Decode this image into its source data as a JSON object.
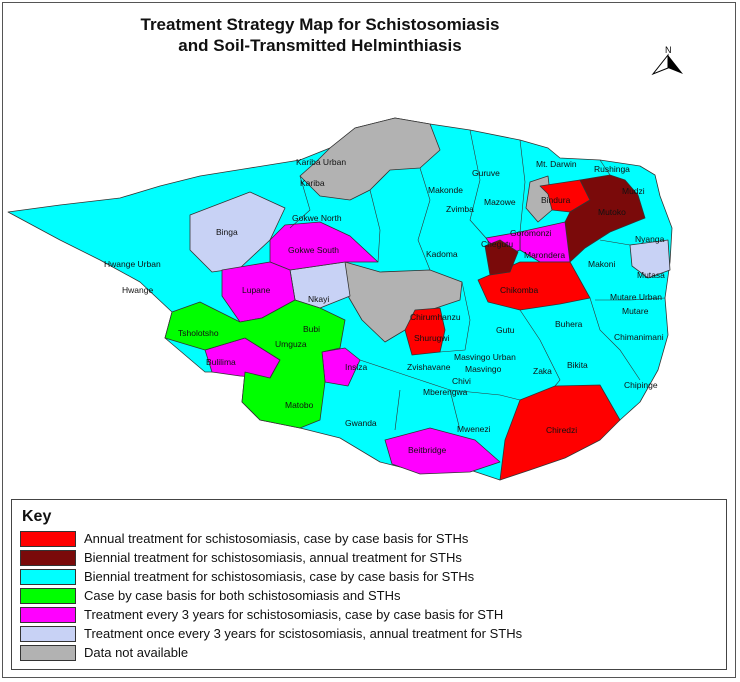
{
  "title_line1": "Treatment Strategy Map for Schistosomiasis",
  "title_line2": "and Soil-Transmitted Helminthiasis",
  "north_label": "N",
  "colors": {
    "annual_schisto": "#ff0000",
    "biennial_schisto_annual_sth": "#7a0a0a",
    "biennial_schisto": "#00ffff",
    "case_by_case_both": "#00ff00",
    "every3_schisto": "#ff00ff",
    "once3_schisto_annual_sth": "#c8d2f5",
    "no_data": "#b2b2b2"
  },
  "districts": {
    "kariba_urban": "Kariba Urban",
    "mt_darwin": "Mt. Darwin",
    "rushinga": "Rushinga",
    "kariba": "Kariba",
    "guruve": "Guruve",
    "makonde": "Makonde",
    "mudzi": "Mudzi",
    "mazowe": "Mazowe",
    "bindura": "Bindura",
    "mutoko": "Mutoko",
    "zvimba": "Zvimba",
    "binga": "Binga",
    "gokwe_north": "Gokwe North",
    "goromonzi": "Goromonzi",
    "gokwe_south": "Gokwe South",
    "chegutu": "Chegutu",
    "marondera": "Marondera",
    "nyanga": "Nyanga",
    "hwange_urban": "Hwange Urban",
    "kadoma": "Kadoma",
    "makoni": "Makoni",
    "mutasa": "Mutasa",
    "hwange": "Hwange",
    "lupane": "Lupane",
    "chikomba": "Chikomba",
    "nkayi": "Nkayi",
    "mutare_urban": "Mutare Urban",
    "mutare": "Mutare",
    "shurugwi": "Shurugwi",
    "gutu": "Gutu",
    "buhera": "Buhera",
    "tsholotsho": "Tsholotsho",
    "bubi": "Bubi",
    "umguza": "Umguza",
    "chimanimani": "Chimanimani",
    "bulilima": "Bulilima",
    "insiza": "Insiza",
    "zvishavane": "Zvishavane",
    "masvingo_urban": "Masvingo Urban",
    "masvingo": "Masvingo",
    "zaka": "Zaka",
    "bikita": "Bikita",
    "chivi": "Chivi",
    "chipinge": "Chipinge",
    "mberengwa": "Mberengwa",
    "matobo": "Matobo",
    "gwanda": "Gwanda",
    "mwenezi": "Mwenezi",
    "chiredzi": "Chiredzi",
    "beitbridge": "Beitbridge",
    "chirumhanzu": "Chirumhanzu"
  },
  "key": {
    "title": "Key",
    "items": [
      {
        "label": "Annual treatment for schistosomiasis, case by case basis for STHs",
        "color": "#ff0000"
      },
      {
        "label": "Biennial treatment for schistosomiasis, annual treatment for STHs",
        "color": "#7a0a0a"
      },
      {
        "label": "Biennial treatment for schistosomiasis, case by case basis for STHs",
        "color": "#00ffff"
      },
      {
        "label": "Case by case basis for both schistosomiasis and STHs",
        "color": "#00ff00"
      },
      {
        "label": "Treatment every 3 years for schistosomiasis, case by case basis for STH",
        "color": "#ff00ff"
      },
      {
        "label": "Treatment once every 3 years for scistosomiasis, annual treatment for STHs",
        "color": "#c8d2f5"
      },
      {
        "label": "Data not available",
        "color": "#b2b2b2"
      }
    ]
  }
}
